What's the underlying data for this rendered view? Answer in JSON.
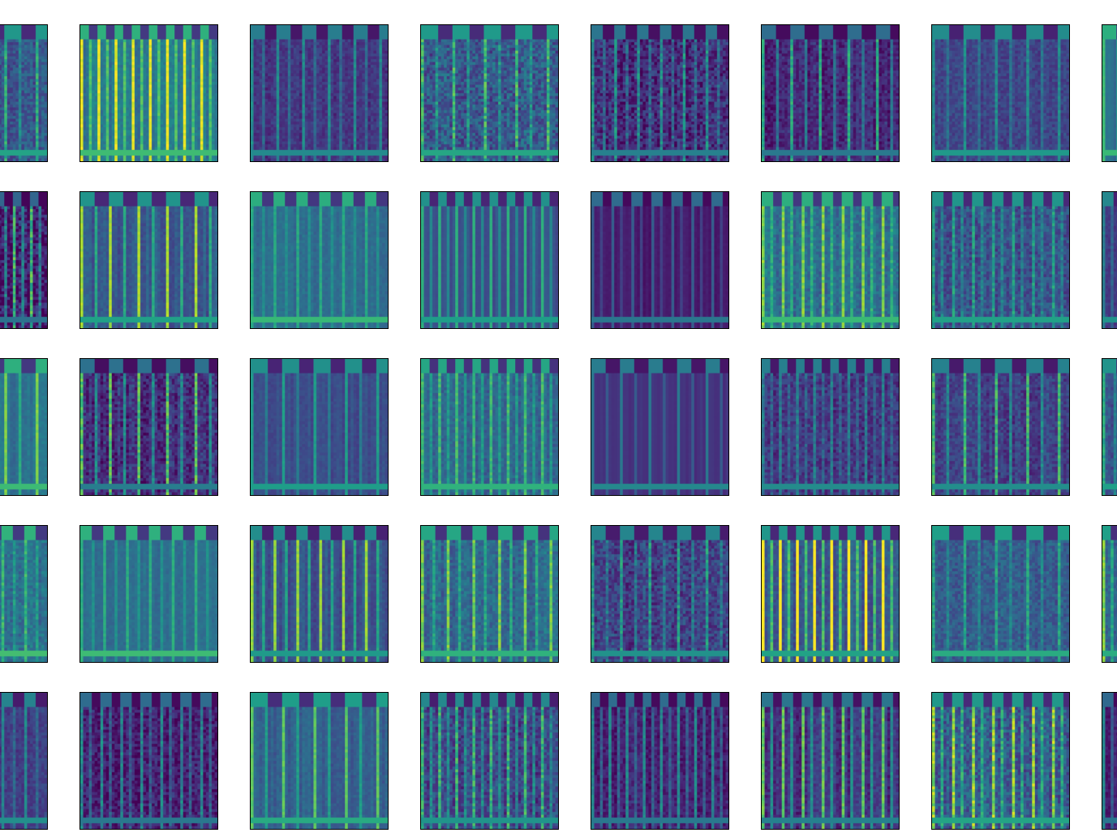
{
  "figure": {
    "rows": 5,
    "columns": 8,
    "colormap": "viridis",
    "colormap_stops": [
      "#440154",
      "#482878",
      "#3e4989",
      "#31688e",
      "#26828e",
      "#1f9e89",
      "#35b779",
      "#6ece58",
      "#b5de2b",
      "#fde725"
    ],
    "background": "#ffffff",
    "frame_color": "#000000"
  }
}
